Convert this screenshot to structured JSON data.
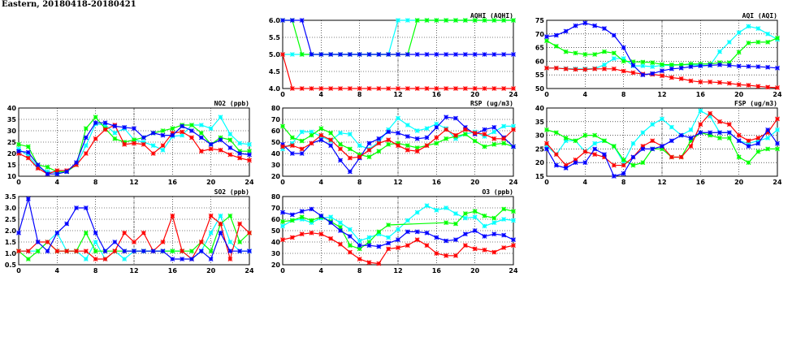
{
  "page_title": "Eastern, 20180418-20180421",
  "chart_data": [
    {
      "type": "line",
      "title": "AQHI (AQHI)",
      "ylim": [
        4,
        6
      ],
      "yticks": [
        4.0,
        4.5,
        5.0,
        5.5,
        6.0
      ],
      "xlim": [
        0,
        24
      ],
      "xticks": [
        0,
        4,
        8,
        12,
        16,
        20,
        24
      ],
      "grid": true,
      "series": [
        {
          "color": "#00ffff",
          "values": [
            5,
            5,
            5,
            5,
            5,
            5,
            5,
            5,
            5,
            5,
            5,
            5,
            6,
            6,
            6,
            6,
            6,
            6,
            6,
            6,
            6,
            6,
            6,
            6,
            6
          ]
        },
        {
          "color": "#ff0000",
          "values": [
            5,
            4,
            4,
            4,
            4,
            4,
            4,
            4,
            4,
            4,
            4,
            4,
            4,
            4,
            4,
            4,
            4,
            4,
            4,
            4,
            4,
            4,
            4,
            4,
            4
          ]
        },
        {
          "color": "#00ff00",
          "values": [
            6,
            6,
            5,
            5,
            5,
            5,
            5,
            5,
            5,
            5,
            5,
            5,
            5,
            5,
            6,
            6,
            6,
            6,
            6,
            6,
            6,
            6,
            6,
            6,
            6
          ]
        },
        {
          "color": "#0000ff",
          "values": [
            6,
            6,
            6,
            5,
            5,
            5,
            5,
            5,
            5,
            5,
            5,
            5,
            5,
            5,
            5,
            5,
            5,
            5,
            5,
            5,
            5,
            5,
            5,
            5,
            5
          ]
        }
      ]
    },
    {
      "type": "line",
      "title": "AQI (AQI)",
      "ylim": [
        50,
        75
      ],
      "yticks": [
        50,
        55,
        60,
        65,
        70,
        75
      ],
      "xlim": [
        0,
        24
      ],
      "xticks": [
        0,
        4,
        8,
        12,
        16,
        20,
        24
      ],
      "grid": true,
      "series": [
        {
          "color": "#00ffff",
          "values": [
            57.5,
            57.5,
            57.3,
            57.2,
            57.2,
            57.3,
            58.7,
            61,
            61,
            58.3,
            58.3,
            58,
            58.5,
            58.5,
            58.7,
            58.7,
            58.5,
            58.5,
            63.5,
            67,
            70.5,
            72.8,
            72,
            70,
            68
          ]
        },
        {
          "color": "#ff0000",
          "values": [
            57.5,
            57.5,
            57.2,
            57,
            57,
            57.2,
            57.2,
            57.2,
            56.4,
            55.8,
            55.3,
            55.2,
            54.7,
            54,
            53.6,
            52.8,
            52.4,
            52.4,
            52.2,
            51.9,
            51.4,
            51.2,
            50.8,
            50.5,
            50.3
          ]
        },
        {
          "color": "#00ff00",
          "values": [
            67.5,
            65.5,
            63.5,
            63,
            62.5,
            62.5,
            63.5,
            63,
            60,
            59.8,
            59.7,
            59.5,
            58.8,
            58.7,
            58.7,
            59,
            59,
            59,
            59.5,
            59.5,
            63.3,
            66.7,
            67,
            67,
            68.5
          ]
        },
        {
          "color": "#0000ff",
          "values": [
            69,
            69.5,
            71,
            73,
            74,
            73,
            72,
            69.5,
            65,
            58.5,
            55,
            55.5,
            56.5,
            57.2,
            57.5,
            58,
            58.3,
            58.5,
            58.7,
            58.5,
            58.2,
            58.1,
            58,
            57.8,
            57.5
          ]
        }
      ]
    },
    {
      "type": "line",
      "title": "NO2 (ppb)",
      "ylim": [
        10,
        40
      ],
      "yticks": [
        10,
        15,
        20,
        25,
        30,
        35,
        40
      ],
      "xlim": [
        0,
        24
      ],
      "xticks": [
        0,
        4,
        8,
        12,
        16,
        20,
        24
      ],
      "grid": true,
      "series": [
        {
          "color": "#00ffff",
          "values": [
            22,
            19,
            14,
            12,
            11.5,
            12,
            15,
            23.5,
            33,
            32.5,
            29,
            31,
            26,
            25,
            23.5,
            21.5,
            27.5,
            28,
            32.5,
            32.5,
            31,
            36,
            28.5,
            24.5,
            24
          ]
        },
        {
          "color": "#00ff00",
          "values": [
            24,
            23,
            15,
            14,
            12,
            12,
            15,
            31,
            36,
            31,
            26.5,
            25,
            26,
            27,
            29,
            30,
            31,
            32.5,
            32.5,
            29,
            24,
            27,
            26,
            21,
            21
          ]
        },
        {
          "color": "#ff0000",
          "values": [
            20,
            18,
            13.5,
            11,
            12.5,
            12.5,
            15,
            20,
            26.5,
            30.5,
            32.5,
            24,
            24.5,
            24,
            20,
            23.5,
            29,
            29.5,
            27,
            21,
            22,
            21.5,
            19.5,
            18,
            17
          ]
        },
        {
          "color": "#0000ff",
          "values": [
            21,
            20.5,
            15,
            11,
            11,
            12,
            16,
            27,
            33.5,
            33.5,
            32,
            31.5,
            31,
            27,
            29,
            28,
            28,
            32,
            30,
            27,
            24,
            26,
            22.5,
            20,
            19.5
          ]
        }
      ]
    },
    {
      "type": "line",
      "title": "RSP (ug/m3)",
      "ylim": [
        20,
        80
      ],
      "yticks": [
        20,
        30,
        40,
        50,
        60,
        70,
        80
      ],
      "xlim": [
        0,
        24
      ],
      "xticks": [
        0,
        4,
        8,
        12,
        16,
        20,
        24
      ],
      "grid": true,
      "series": [
        {
          "color": "#00ffff",
          "values": [
            44,
            49,
            59,
            59,
            55,
            51,
            58,
            57,
            47,
            44,
            50,
            61,
            71,
            65,
            60,
            62,
            66,
            62,
            53,
            57,
            59,
            55,
            59,
            64,
            64
          ]
        },
        {
          "color": "#00ff00",
          "values": [
            64,
            54,
            51,
            56,
            62,
            58,
            48,
            44,
            39,
            37,
            42,
            48,
            49,
            47,
            45,
            47,
            49,
            53,
            55,
            57,
            51,
            46,
            48,
            49,
            46
          ]
        },
        {
          "color": "#0000ff",
          "values": [
            48,
            40,
            40,
            49,
            52,
            47,
            34,
            24,
            36,
            49,
            53,
            59,
            58,
            55,
            53,
            54,
            63,
            72,
            71,
            63,
            57,
            61,
            63,
            54,
            46
          ]
        },
        {
          "color": "#ff0000",
          "values": [
            46,
            47,
            44,
            49,
            56,
            52,
            44,
            36,
            37,
            43,
            49,
            52,
            47,
            43,
            42,
            47,
            54,
            61,
            56,
            61,
            58,
            57,
            53,
            53,
            61
          ]
        }
      ]
    },
    {
      "type": "line",
      "title": "FSP (ug/m3)",
      "ylim": [
        15,
        40
      ],
      "yticks": [
        15,
        20,
        25,
        30,
        35,
        40
      ],
      "xlim": [
        0,
        24
      ],
      "xticks": [
        0,
        4,
        8,
        12,
        16,
        20,
        24
      ],
      "grid": true,
      "series": [
        {
          "color": "#00ffff",
          "values": [
            26,
            23,
            28,
            28,
            24,
            27,
            28,
            26,
            20,
            27,
            31,
            34,
            36,
            33,
            30,
            32,
            39,
            37,
            31,
            31,
            28,
            27,
            28,
            29,
            32
          ]
        },
        {
          "color": "#00ff00",
          "values": [
            32,
            31,
            29,
            28,
            30,
            30,
            28,
            26,
            21,
            19,
            20,
            25,
            25,
            22,
            22,
            28,
            31,
            30,
            29,
            29,
            22,
            20,
            24,
            25,
            25
          ]
        },
        {
          "color": "#ff0000",
          "values": [
            27,
            23,
            19,
            21,
            24,
            23,
            22,
            19,
            19,
            22,
            26,
            28,
            26,
            22,
            22,
            26,
            34,
            38,
            35,
            34,
            30,
            28,
            29,
            31,
            36
          ]
        },
        {
          "color": "#0000ff",
          "values": [
            25,
            19,
            18,
            20,
            20,
            25,
            23,
            15,
            16,
            22,
            25,
            25,
            26,
            28,
            30,
            29,
            31,
            31,
            31,
            31,
            28,
            26,
            27,
            32,
            27
          ]
        }
      ]
    },
    {
      "type": "line",
      "title": "SO2 (ppb)",
      "ylim": [
        0.5,
        3.5
      ],
      "yticks": [
        0.5,
        1.0,
        1.5,
        2.0,
        2.5,
        3.0,
        3.5
      ],
      "xlim": [
        0,
        24
      ],
      "xticks": [
        0,
        4,
        8,
        12,
        16,
        20,
        24
      ],
      "grid": true,
      "series": [
        {
          "color": "#00ffff",
          "values": [
            1.1,
            1.1,
            1.1,
            1.5,
            1.9,
            1.1,
            1.1,
            0.75,
            1.5,
            0.75,
            1.1,
            0.75,
            1.1,
            1.1,
            1.1,
            1.1,
            1.1,
            1.1,
            0.75,
            1.1,
            1.9,
            2.65,
            1.5,
            1.1,
            1.1
          ]
        },
        {
          "color": "#00ff00",
          "values": [
            1.1,
            0.75,
            1.1,
            1.5,
            1.1,
            1.1,
            1.1,
            1.9,
            1.1,
            1.1,
            1.1,
            1.1,
            1.1,
            1.1,
            1.1,
            1.1,
            1.1,
            1.1,
            1.1,
            1.5,
            1.1,
            2.3,
            2.65,
            1.5,
            1.9
          ]
        },
        {
          "color": "#ff0000",
          "values": [
            1.1,
            1.1,
            1.5,
            1.5,
            1.1,
            1.1,
            1.1,
            1.1,
            0.75,
            0.75,
            1.1,
            1.9,
            1.5,
            1.9,
            1.1,
            1.5,
            2.65,
            1.1,
            0.75,
            1.5,
            2.65,
            2.3,
            0.75,
            2.3,
            1.9
          ]
        },
        {
          "color": "#0000ff",
          "values": [
            1.9,
            3.4,
            1.5,
            1.1,
            1.9,
            2.3,
            3.0,
            3.0,
            1.9,
            1.1,
            1.5,
            1.1,
            1.1,
            1.1,
            1.1,
            1.1,
            0.75,
            0.75,
            0.75,
            1.1,
            0.75,
            1.9,
            1.1,
            1.1,
            1.1
          ]
        }
      ]
    },
    {
      "type": "line",
      "title": "O3 (ppb)",
      "ylim": [
        20,
        80
      ],
      "yticks": [
        20,
        30,
        40,
        50,
        60,
        70,
        80
      ],
      "xlim": [
        0,
        24
      ],
      "xticks": [
        0,
        4,
        8,
        12,
        16,
        20,
        24
      ],
      "grid": true,
      "series": [
        {
          "color": "#00ffff",
          "values": [
            54,
            59,
            60,
            57,
            61,
            62,
            57,
            51,
            41,
            44,
            47,
            44,
            51,
            59,
            66,
            72,
            68,
            70,
            65,
            61,
            62,
            54,
            57,
            60,
            59
          ]
        },
        {
          "color": "#00ff00",
          "values": [
            58,
            59,
            62,
            59,
            62,
            58,
            53,
            37,
            34,
            40,
            49,
            55,
            null,
            null,
            null,
            null,
            null,
            57,
            56,
            65,
            67,
            63,
            61,
            69,
            67
          ]
        },
        {
          "color": "#0000ff",
          "values": [
            66,
            64,
            67,
            69,
            63,
            57,
            50,
            45,
            37,
            37,
            36,
            39,
            42,
            49,
            49,
            48,
            44,
            41,
            42,
            47,
            50,
            45,
            47,
            46,
            42
          ]
        },
        {
          "color": "#ff0000",
          "values": [
            42,
            44,
            47,
            48,
            47,
            43,
            38,
            31,
            25,
            22,
            21,
            34,
            35,
            37,
            42,
            37,
            30,
            28,
            28,
            37,
            34,
            33,
            31,
            35,
            37
          ]
        }
      ]
    }
  ]
}
